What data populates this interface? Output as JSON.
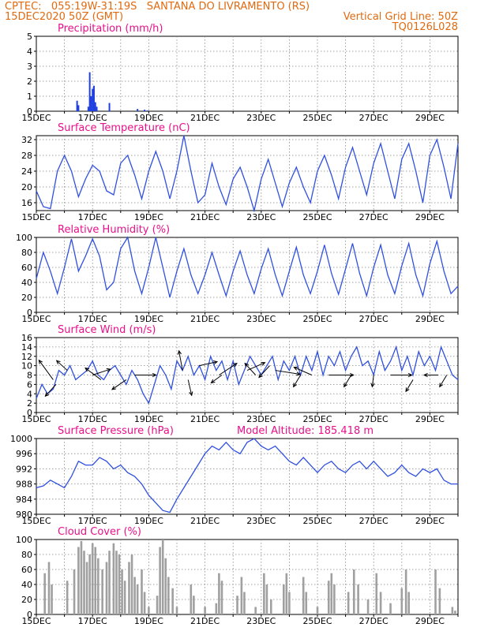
{
  "header": {
    "line1_left": "CPTEC:   055:19W-31:19S   SANTANA DO LIVRAMENTO (RS)",
    "line2_left": "15DEC2020 50Z (GMT)",
    "line2_right": "Vertical Grid Line: 50Z",
    "line3_right": "TQ0126L028"
  },
  "colors": {
    "header": "#e06a10",
    "title": "#e8108a",
    "line": "#3050e0",
    "bar_precip": "#2040e0",
    "bar_cloud": "#a0a0a0",
    "arrow": "#000000"
  },
  "x_tick_labels": [
    "15DEC",
    "17DEC",
    "19DEC",
    "21DEC",
    "23DEC",
    "25DEC",
    "27DEC",
    "29DEC"
  ],
  "chart_data": [
    {
      "id": "precip",
      "type": "bar",
      "title": "Precipitation (mm/h)",
      "ylim": [
        0,
        5
      ],
      "yticks": [
        0,
        1,
        2,
        3,
        4,
        5
      ],
      "xlim": [
        0,
        15
      ],
      "points": [
        [
          1.45,
          0.7
        ],
        [
          1.5,
          0.4
        ],
        [
          1.85,
          0.3
        ],
        [
          1.9,
          2.6
        ],
        [
          1.95,
          1.0
        ],
        [
          2.0,
          1.5
        ],
        [
          2.05,
          1.7
        ],
        [
          2.1,
          0.6
        ],
        [
          2.15,
          0.3
        ],
        [
          2.6,
          0.55
        ],
        [
          3.6,
          0.15
        ],
        [
          3.85,
          0.1
        ],
        [
          3.95,
          0.05
        ]
      ]
    },
    {
      "id": "temp",
      "type": "line",
      "title": "Surface Temperature (nC)",
      "ylim": [
        14,
        33
      ],
      "yticks": [
        16,
        20,
        24,
        28,
        32
      ],
      "xlim": [
        0,
        15
      ],
      "x": [
        0,
        0.25,
        0.5,
        0.75,
        1,
        1.25,
        1.5,
        1.75,
        2,
        2.25,
        2.5,
        2.75,
        3,
        3.25,
        3.5,
        3.75,
        4,
        4.25,
        4.5,
        4.75,
        5,
        5.25,
        5.5,
        5.75,
        6,
        6.25,
        6.5,
        6.75,
        7,
        7.25,
        7.5,
        7.75,
        8,
        8.25,
        8.5,
        8.75,
        9,
        9.25,
        9.5,
        9.75,
        10,
        10.25,
        10.5,
        10.75,
        11,
        11.25,
        11.5,
        11.75,
        12,
        12.25,
        12.5,
        12.75,
        13,
        13.25,
        13.5,
        13.75,
        14,
        14.25,
        14.5,
        14.75,
        15
      ],
      "y": [
        19,
        15,
        14.5,
        24,
        28,
        24,
        17.5,
        22,
        25.5,
        24,
        19,
        18,
        26,
        28,
        23,
        17,
        24,
        29,
        24,
        17,
        24,
        33,
        24,
        16,
        18,
        26,
        20,
        15.5,
        22,
        25,
        20,
        14,
        22,
        27,
        21,
        15,
        21,
        25,
        20,
        16,
        24,
        28,
        23,
        17,
        25,
        30,
        24,
        18,
        26,
        31,
        24,
        17,
        27,
        31,
        24,
        16,
        28,
        32,
        25,
        17,
        31
      ]
    },
    {
      "id": "rh",
      "type": "line",
      "title": "Relative Humidity (%)",
      "ylim": [
        0,
        100
      ],
      "yticks": [
        0,
        20,
        40,
        60,
        80,
        100
      ],
      "xlim": [
        0,
        15
      ],
      "x": [
        0,
        0.25,
        0.5,
        0.75,
        1,
        1.25,
        1.5,
        1.75,
        2,
        2.25,
        2.5,
        2.75,
        3,
        3.25,
        3.5,
        3.75,
        4,
        4.25,
        4.5,
        4.75,
        5,
        5.25,
        5.5,
        5.75,
        6,
        6.25,
        6.5,
        6.75,
        7,
        7.25,
        7.5,
        7.75,
        8,
        8.25,
        8.5,
        8.75,
        9,
        9.25,
        9.5,
        9.75,
        10,
        10.25,
        10.5,
        10.75,
        11,
        11.25,
        11.5,
        11.75,
        12,
        12.25,
        12.5,
        12.75,
        13,
        13.25,
        13.5,
        13.75,
        14,
        14.25,
        14.5,
        14.75,
        15
      ],
      "y": [
        45,
        80,
        55,
        25,
        60,
        98,
        55,
        75,
        98,
        75,
        30,
        40,
        85,
        100,
        55,
        25,
        60,
        100,
        60,
        20,
        55,
        85,
        50,
        25,
        50,
        80,
        50,
        22,
        55,
        82,
        50,
        25,
        58,
        85,
        50,
        22,
        55,
        87,
        50,
        25,
        55,
        90,
        52,
        24,
        58,
        92,
        52,
        22,
        60,
        90,
        50,
        25,
        62,
        92,
        50,
        22,
        65,
        95,
        55,
        25,
        35
      ],
      "note_text": ""
    },
    {
      "id": "wind",
      "type": "line",
      "title": "Surface Wind (m/s)",
      "ylim": [
        0,
        16
      ],
      "yticks": [
        0,
        2,
        4,
        6,
        8,
        10,
        12,
        14,
        16
      ],
      "xlim": [
        0,
        15
      ],
      "x": [
        0,
        0.2,
        0.4,
        0.6,
        0.8,
        1,
        1.2,
        1.4,
        1.6,
        1.8,
        2,
        2.2,
        2.4,
        2.6,
        2.8,
        3,
        3.2,
        3.4,
        3.6,
        3.8,
        4,
        4.2,
        4.4,
        4.6,
        4.8,
        5,
        5.2,
        5.4,
        5.6,
        5.8,
        6,
        6.2,
        6.4,
        6.6,
        6.8,
        7,
        7.2,
        7.4,
        7.6,
        7.8,
        8,
        8.2,
        8.4,
        8.6,
        8.8,
        9,
        9.2,
        9.4,
        9.6,
        9.8,
        10,
        10.2,
        10.4,
        10.6,
        10.8,
        11,
        11.2,
        11.4,
        11.6,
        11.8,
        12,
        12.2,
        12.4,
        12.6,
        12.8,
        13,
        13.2,
        13.4,
        13.6,
        13.8,
        14,
        14.2,
        14.4,
        14.6,
        14.8,
        15
      ],
      "y": [
        3,
        6,
        4,
        5,
        9,
        8,
        10,
        7,
        8,
        9,
        11,
        8,
        7,
        9,
        10,
        8,
        6,
        9,
        7,
        4,
        2,
        6,
        10,
        8,
        5,
        11,
        9,
        12,
        8,
        10,
        7,
        12,
        9,
        11,
        7,
        11,
        6,
        9,
        12,
        10,
        8,
        10,
        12,
        7,
        11,
        9,
        12,
        8,
        12,
        9,
        13,
        8,
        12,
        10,
        13,
        9,
        12,
        14,
        10,
        11,
        8,
        13,
        9,
        11,
        14,
        9,
        12,
        8,
        13,
        10,
        12,
        9,
        14,
        11,
        8,
        7
      ],
      "arrows": [
        {
          "x": 0.6,
          "y": 7,
          "u": -2,
          "v": 5
        },
        {
          "x": 0.7,
          "y": 6,
          "u": -1.5,
          "v": -3
        },
        {
          "x": 1.1,
          "y": 9,
          "u": -1.5,
          "v": 2.5
        },
        {
          "x": 2.0,
          "y": 8,
          "u": 2.5,
          "v": 1.5
        },
        {
          "x": 2.3,
          "y": 7,
          "u": -2.2,
          "v": 3
        },
        {
          "x": 3.2,
          "y": 7,
          "u": -2,
          "v": -2.5
        },
        {
          "x": 3.5,
          "y": 8,
          "u": 3,
          "v": 0
        },
        {
          "x": 5.2,
          "y": 9,
          "u": -0.5,
          "v": 5
        },
        {
          "x": 5.4,
          "y": 7,
          "u": 0.5,
          "v": -4
        },
        {
          "x": 5.8,
          "y": 10,
          "u": 2.5,
          "v": 1
        },
        {
          "x": 6.6,
          "y": 8,
          "u": -1.5,
          "v": -2
        },
        {
          "x": 6.5,
          "y": 8,
          "u": 2.5,
          "v": 3
        },
        {
          "x": 7.5,
          "y": 9,
          "u": 2.5,
          "v": 2
        },
        {
          "x": 7.8,
          "y": 8,
          "u": -1.5,
          "v": 3
        },
        {
          "x": 8.3,
          "y": 10,
          "u": -1.5,
          "v": -3
        },
        {
          "x": 8.5,
          "y": 9,
          "u": 3.5,
          "v": -1
        },
        {
          "x": 9.4,
          "y": 8,
          "u": -1,
          "v": -3
        },
        {
          "x": 9.8,
          "y": 8,
          "u": -2.5,
          "v": 2
        },
        {
          "x": 10.4,
          "y": 8,
          "u": 3.5,
          "v": 0
        },
        {
          "x": 11.2,
          "y": 8,
          "u": -1,
          "v": -3
        },
        {
          "x": 12.0,
          "y": 8,
          "u": -0.2,
          "v": -3
        },
        {
          "x": 12.6,
          "y": 8,
          "u": 3,
          "v": 0
        },
        {
          "x": 13.4,
          "y": 7,
          "u": -1,
          "v": -3
        },
        {
          "x": 14.3,
          "y": 8,
          "u": -2,
          "v": 0
        },
        {
          "x": 14.6,
          "y": 8,
          "u": -1,
          "v": -3
        }
      ]
    },
    {
      "id": "pressure",
      "type": "line",
      "title": "Surface Pressure (hPa)",
      "subtitle": "Model Altitude: 185.418 m",
      "ylim": [
        980,
        1000
      ],
      "yticks": [
        980,
        984,
        988,
        992,
        996,
        1000
      ],
      "xlim": [
        0,
        15
      ],
      "x": [
        0,
        0.25,
        0.5,
        0.75,
        1,
        1.25,
        1.5,
        1.75,
        2,
        2.25,
        2.5,
        2.75,
        3,
        3.25,
        3.5,
        3.75,
        4,
        4.25,
        4.5,
        4.75,
        5,
        5.25,
        5.5,
        5.75,
        6,
        6.25,
        6.5,
        6.75,
        7,
        7.25,
        7.5,
        7.75,
        8,
        8.25,
        8.5,
        8.75,
        9,
        9.25,
        9.5,
        9.75,
        10,
        10.25,
        10.5,
        10.75,
        11,
        11.25,
        11.5,
        11.75,
        12,
        12.25,
        12.5,
        12.75,
        13,
        13.25,
        13.5,
        13.75,
        14,
        14.25,
        14.5,
        14.75,
        15
      ],
      "y": [
        987,
        987.5,
        989,
        988,
        987,
        990,
        994,
        993,
        993,
        995,
        994,
        992,
        993,
        991,
        990,
        988,
        985,
        983,
        981,
        980.5,
        984,
        987,
        990,
        993,
        996,
        998,
        997,
        999,
        997,
        996,
        999,
        1000,
        998,
        997,
        998,
        996,
        994,
        993,
        995,
        993,
        991,
        993,
        994,
        992,
        991,
        993,
        994,
        992,
        994,
        992,
        990,
        991,
        993,
        991,
        990,
        992,
        991,
        992,
        989,
        988,
        988
      ]
    },
    {
      "id": "cloud",
      "type": "bar",
      "title": "Cloud Cover (%)",
      "ylim": [
        0,
        100
      ],
      "yticks": [
        0,
        20,
        40,
        60,
        80,
        100
      ],
      "xlim": [
        0,
        15
      ],
      "points": [
        [
          0.3,
          55
        ],
        [
          0.45,
          70
        ],
        [
          0.55,
          40
        ],
        [
          1.1,
          45
        ],
        [
          1.35,
          60
        ],
        [
          1.5,
          90
        ],
        [
          1.6,
          98
        ],
        [
          1.7,
          85
        ],
        [
          1.8,
          70
        ],
        [
          1.9,
          80
        ],
        [
          2.0,
          95
        ],
        [
          2.1,
          90
        ],
        [
          2.2,
          75
        ],
        [
          2.35,
          60
        ],
        [
          2.5,
          70
        ],
        [
          2.6,
          85
        ],
        [
          2.75,
          95
        ],
        [
          2.85,
          85
        ],
        [
          2.95,
          80
        ],
        [
          3.05,
          60
        ],
        [
          3.15,
          45
        ],
        [
          3.3,
          70
        ],
        [
          3.4,
          80
        ],
        [
          3.5,
          50
        ],
        [
          3.6,
          40
        ],
        [
          3.75,
          60
        ],
        [
          3.85,
          30
        ],
        [
          4.0,
          10
        ],
        [
          4.3,
          25
        ],
        [
          4.4,
          90
        ],
        [
          4.5,
          100
        ],
        [
          4.6,
          75
        ],
        [
          4.7,
          50
        ],
        [
          4.85,
          35
        ],
        [
          5.0,
          10
        ],
        [
          5.5,
          40
        ],
        [
          5.6,
          25
        ],
        [
          6.0,
          10
        ],
        [
          6.4,
          15
        ],
        [
          6.5,
          55
        ],
        [
          6.6,
          45
        ],
        [
          7.15,
          25
        ],
        [
          7.3,
          50
        ],
        [
          7.4,
          30
        ],
        [
          7.8,
          10
        ],
        [
          8.1,
          55
        ],
        [
          8.2,
          40
        ],
        [
          8.35,
          20
        ],
        [
          8.8,
          40
        ],
        [
          8.9,
          55
        ],
        [
          9.0,
          30
        ],
        [
          9.5,
          50
        ],
        [
          9.6,
          30
        ],
        [
          10.0,
          10
        ],
        [
          10.4,
          45
        ],
        [
          10.5,
          55
        ],
        [
          10.6,
          40
        ],
        [
          11.1,
          30
        ],
        [
          11.3,
          60
        ],
        [
          11.45,
          40
        ],
        [
          11.8,
          20
        ],
        [
          12.1,
          55
        ],
        [
          12.25,
          30
        ],
        [
          12.6,
          15
        ],
        [
          13.0,
          35
        ],
        [
          13.15,
          60
        ],
        [
          13.25,
          30
        ],
        [
          14.2,
          60
        ],
        [
          14.35,
          35
        ],
        [
          14.8,
          10
        ],
        [
          14.9,
          5
        ]
      ]
    }
  ]
}
